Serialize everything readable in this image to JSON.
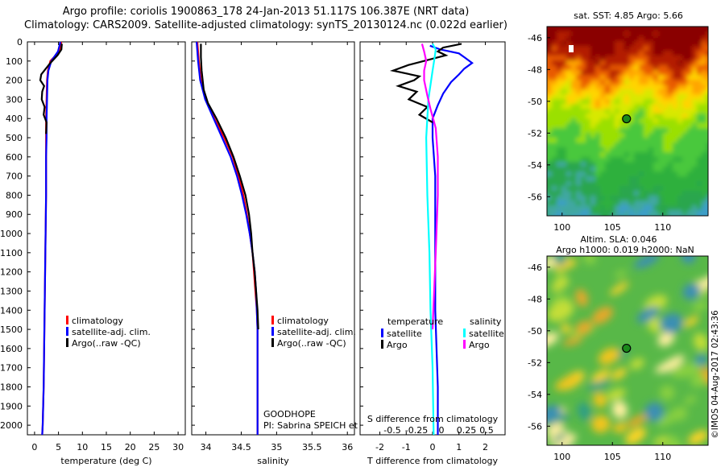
{
  "header": {
    "line1": "Argo profile: coriolis 1900863_178 24-Jan-2013 51.117S 106.387E (NRT data)",
    "line2": "Climatology: CARS2009. Satellite-adjusted climatology: synTS_20130124.nc (0.022d earlier)"
  },
  "right": {
    "sst_title": "sat. SST: 4.85 Argo: 5.66",
    "sla_title1": "Altim. SLA: 0.046",
    "sla_title2": "Argo h1000: 0.019 h2000: NaN",
    "footer": "©IMOS 04-Aug-2017 02:43:36"
  },
  "colors": {
    "climatology": "#ff0000",
    "satellite": "#0000ff",
    "argo": "#000000",
    "sal_satellite": "#00ffff",
    "sal_argo": "#ff00ff",
    "map_marker": "#1b8a1b"
  },
  "chart_data": [
    {
      "type": "line",
      "panel": "temperature",
      "xlabel": "temperature (deg C)",
      "xticks": [
        0,
        5,
        10,
        15,
        20,
        25,
        30
      ],
      "xlim": [
        -1.5,
        31.5
      ],
      "ylim": [
        2050,
        0
      ],
      "yticks": [
        0,
        100,
        200,
        300,
        400,
        500,
        600,
        700,
        800,
        900,
        1000,
        1100,
        1200,
        1300,
        1400,
        1500,
        1600,
        1700,
        1800,
        1900,
        2000
      ],
      "legend": [
        "climatology",
        "satellite-adj. clim.",
        "Argo(..raw -QC)"
      ],
      "series": [
        {
          "name": "climatology",
          "color": "#ff0000",
          "points": [
            [
              5.6,
              0
            ],
            [
              5.2,
              50
            ],
            [
              3.3,
              100
            ],
            [
              2.8,
              150
            ],
            [
              2.6,
              200
            ],
            [
              2.5,
              300
            ],
            [
              2.4,
              400
            ],
            [
              2.4,
              500
            ],
            [
              2.4,
              600
            ],
            [
              2.4,
              800
            ],
            [
              2.3,
              1000
            ],
            [
              2.2,
              1200
            ],
            [
              2.1,
              1400
            ],
            [
              2.0,
              1600
            ],
            [
              1.9,
              1800
            ],
            [
              1.7,
              2000
            ],
            [
              1.6,
              2050
            ]
          ]
        },
        {
          "name": "satellite-adj. clim.",
          "color": "#0000ff",
          "points": [
            [
              5.4,
              0
            ],
            [
              4.9,
              50
            ],
            [
              3.5,
              100
            ],
            [
              2.9,
              150
            ],
            [
              2.7,
              200
            ],
            [
              2.6,
              300
            ],
            [
              2.5,
              400
            ],
            [
              2.5,
              500
            ],
            [
              2.4,
              600
            ],
            [
              2.4,
              800
            ],
            [
              2.3,
              1000
            ],
            [
              2.2,
              1200
            ],
            [
              2.1,
              1400
            ],
            [
              2.0,
              1600
            ],
            [
              1.9,
              1800
            ],
            [
              1.7,
              2000
            ],
            [
              1.6,
              2050
            ]
          ]
        },
        {
          "name": "Argo(..raw -QC)",
          "color": "#000000",
          "points": [
            [
              5.7,
              10
            ],
            [
              5.6,
              40
            ],
            [
              4.8,
              70
            ],
            [
              3.3,
              110
            ],
            [
              1.4,
              170
            ],
            [
              1.2,
              200
            ],
            [
              2.0,
              230
            ],
            [
              1.6,
              260
            ],
            [
              1.5,
              300
            ],
            [
              2.1,
              340
            ],
            [
              1.9,
              380
            ],
            [
              2.5,
              420
            ],
            [
              2.4,
              480
            ]
          ]
        }
      ]
    },
    {
      "type": "line",
      "panel": "salinity",
      "xlabel": "salinity",
      "xticks": [
        34,
        34.5,
        35,
        35.5,
        36
      ],
      "xlim": [
        33.8,
        36.1
      ],
      "ylim": [
        2050,
        0
      ],
      "legend": [
        "climatology",
        "satellite-adj. clim.",
        "Argo(..raw -QC)"
      ],
      "annotation": [
        "GOODHOPE",
        "PI: Sabrina SPEICH et Michel ARHAN"
      ],
      "series": [
        {
          "name": "climatology",
          "color": "#ff0000",
          "points": [
            [
              33.88,
              0
            ],
            [
              33.9,
              100
            ],
            [
              33.93,
              200
            ],
            [
              34.0,
              300
            ],
            [
              34.12,
              400
            ],
            [
              34.26,
              500
            ],
            [
              34.38,
              600
            ],
            [
              34.46,
              700
            ],
            [
              34.53,
              800
            ],
            [
              34.58,
              900
            ],
            [
              34.62,
              1000
            ],
            [
              34.66,
              1100
            ],
            [
              34.68,
              1200
            ],
            [
              34.7,
              1300
            ],
            [
              34.72,
              1400
            ],
            [
              34.73,
              1500
            ],
            [
              34.73,
              1600
            ],
            [
              34.73,
              1800
            ],
            [
              34.73,
              2000
            ],
            [
              34.73,
              2050
            ]
          ]
        },
        {
          "name": "satellite-adj. clim.",
          "color": "#0000ff",
          "points": [
            [
              33.87,
              0
            ],
            [
              33.89,
              100
            ],
            [
              33.92,
              200
            ],
            [
              33.99,
              300
            ],
            [
              34.11,
              400
            ],
            [
              34.23,
              500
            ],
            [
              34.35,
              600
            ],
            [
              34.44,
              700
            ],
            [
              34.51,
              800
            ],
            [
              34.57,
              900
            ],
            [
              34.62,
              1000
            ],
            [
              34.66,
              1100
            ],
            [
              34.69,
              1200
            ],
            [
              34.71,
              1300
            ],
            [
              34.72,
              1400
            ],
            [
              34.73,
              1500
            ],
            [
              34.73,
              1600
            ],
            [
              34.73,
              1800
            ],
            [
              34.73,
              2000
            ],
            [
              34.73,
              2050
            ]
          ]
        },
        {
          "name": "Argo(..raw -QC)",
          "color": "#000000",
          "points": [
            [
              33.93,
              10
            ],
            [
              33.93,
              80
            ],
            [
              33.94,
              150
            ],
            [
              33.97,
              250
            ],
            [
              34.03,
              320
            ],
            [
              34.15,
              400
            ],
            [
              34.28,
              500
            ],
            [
              34.39,
              600
            ],
            [
              34.48,
              700
            ],
            [
              34.56,
              800
            ],
            [
              34.61,
              900
            ],
            [
              34.64,
              1000
            ],
            [
              34.66,
              1100
            ],
            [
              34.69,
              1200
            ],
            [
              34.71,
              1300
            ],
            [
              34.73,
              1400
            ],
            [
              34.74,
              1500
            ]
          ]
        }
      ]
    },
    {
      "type": "line",
      "panel": "differences",
      "xlabel": "T difference from climatology",
      "xticks": [
        -2,
        -1,
        0,
        1,
        2
      ],
      "xlim": [
        -2.75,
        2.75
      ],
      "second_xlabel": "S difference from climatology",
      "second_xticks": [
        "-0.5",
        "-0.25",
        "0",
        "0.25",
        "0.5"
      ],
      "ylim": [
        2050,
        0
      ],
      "legend_headers": [
        "temperature",
        "salinity"
      ],
      "legend": [
        "satellite",
        "Argo",
        "satellite",
        "Argo"
      ],
      "series": [
        {
          "name": "satellite",
          "group": "temperature",
          "color": "#0000ff",
          "points": [
            [
              -0.1,
              20
            ],
            [
              0.3,
              40
            ],
            [
              1.0,
              60
            ],
            [
              1.2,
              80
            ],
            [
              1.5,
              110
            ],
            [
              1.2,
              140
            ],
            [
              1.0,
              170
            ],
            [
              0.7,
              210
            ],
            [
              0.4,
              270
            ],
            [
              0.2,
              330
            ],
            [
              0.0,
              400
            ],
            [
              0.0,
              500
            ],
            [
              0.1,
              700
            ],
            [
              0.1,
              1000
            ],
            [
              0.1,
              1400
            ],
            [
              0.2,
              1800
            ],
            [
              0.2,
              2050
            ]
          ]
        },
        {
          "name": "Argo",
          "group": "temperature",
          "color": "#000000",
          "points": [
            [
              1.1,
              10
            ],
            [
              0.4,
              30
            ],
            [
              0.2,
              50
            ],
            [
              0.5,
              70
            ],
            [
              -0.9,
              120
            ],
            [
              -1.5,
              150
            ],
            [
              -0.5,
              180
            ],
            [
              -0.7,
              200
            ],
            [
              -1.3,
              230
            ],
            [
              -0.6,
              260
            ],
            [
              -0.9,
              300
            ],
            [
              -0.2,
              340
            ],
            [
              -0.5,
              380
            ],
            [
              0.0,
              420
            ]
          ]
        },
        {
          "name": "satellite",
          "group": "salinity",
          "color": "#00ffff",
          "points": [
            [
              0.0,
              10
            ],
            [
              0.03,
              40
            ],
            [
              0.02,
              80
            ],
            [
              0.0,
              150
            ],
            [
              -0.04,
              300
            ],
            [
              -0.06,
              500
            ],
            [
              -0.05,
              800
            ],
            [
              -0.03,
              1100
            ],
            [
              -0.02,
              1400
            ],
            [
              0.0,
              1700
            ],
            [
              0.01,
              2050
            ]
          ]
        },
        {
          "name": "Argo",
          "group": "salinity",
          "color": "#ff00ff",
          "points": [
            [
              -0.1,
              10
            ],
            [
              -0.08,
              50
            ],
            [
              -0.06,
              100
            ],
            [
              -0.08,
              150
            ],
            [
              -0.08,
              200
            ],
            [
              -0.05,
              280
            ],
            [
              -0.02,
              350
            ],
            [
              0.03,
              450
            ],
            [
              0.05,
              600
            ],
            [
              0.05,
              800
            ],
            [
              0.03,
              1100
            ],
            [
              0.0,
              1500
            ]
          ]
        }
      ]
    },
    {
      "type": "heatmap",
      "panel": "sst_map",
      "xticks": [
        100,
        105,
        110
      ],
      "yticks": [
        -46,
        -48,
        -50,
        -52,
        -54,
        -56
      ],
      "xlim": [
        98.5,
        114.5
      ],
      "ylim": [
        -57.2,
        -45.3
      ],
      "marker": [
        106.4,
        -51.1
      ]
    },
    {
      "type": "heatmap",
      "panel": "sla_map",
      "xticks": [
        100,
        105,
        110
      ],
      "yticks": [
        -46,
        -48,
        -50,
        -52,
        -54,
        -56
      ],
      "xlim": [
        98.5,
        114.5
      ],
      "ylim": [
        -57.2,
        -45.3
      ],
      "marker": [
        106.4,
        -51.1
      ]
    }
  ]
}
